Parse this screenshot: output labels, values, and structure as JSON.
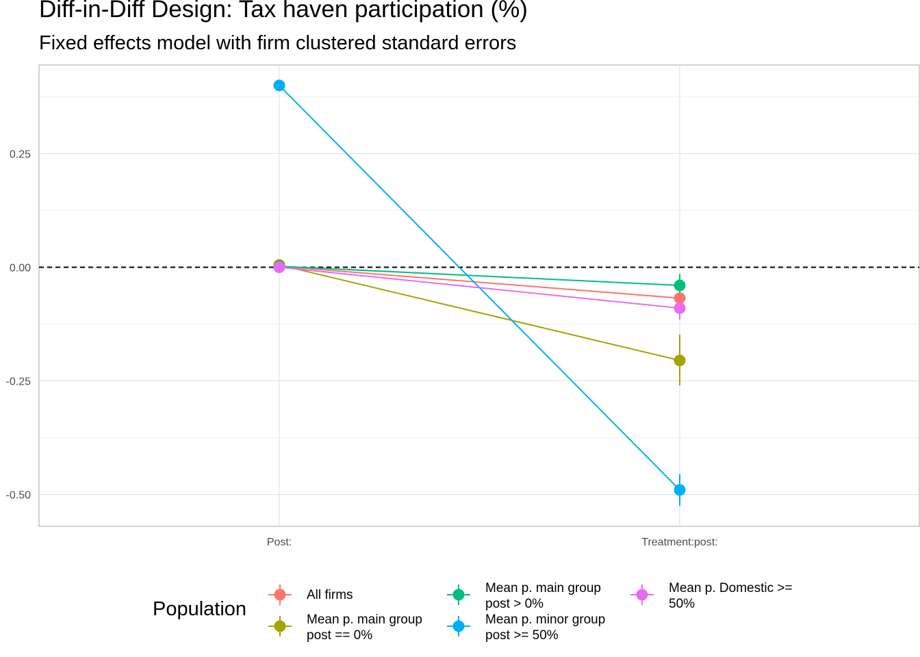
{
  "chart_data": {
    "type": "line",
    "title": "Diff-in-Diff Design: Tax haven participation (%)",
    "subtitle": "Fixed effects model with firm clustered standard errors",
    "xlabel": "",
    "ylabel": "",
    "categories": [
      "Post:",
      "Treatment:post:"
    ],
    "y_ticks": [
      0.25,
      0.0,
      -0.25,
      -0.5
    ],
    "y_tick_labels": [
      "0.25",
      "0.00",
      "-0.25",
      "-0.50"
    ],
    "ylim": [
      -0.57,
      0.445
    ],
    "grid": true,
    "reference_line": {
      "y": 0,
      "style": "dashed"
    },
    "legend": {
      "title": "Population",
      "position": "bottom"
    },
    "series": [
      {
        "name": "All firms",
        "color": "#F8766D",
        "values": [
          0.002,
          -0.068
        ],
        "ci_low": [
          0.0,
          -0.083
        ],
        "ci_high": [
          0.004,
          -0.053
        ]
      },
      {
        "name": "Mean p. main group post == 0%",
        "color": "#A3A500",
        "values": [
          0.005,
          -0.205
        ],
        "ci_low": [
          0.0,
          -0.26
        ],
        "ci_high": [
          0.01,
          -0.148
        ]
      },
      {
        "name": "Mean p. main group post > 0%",
        "color": "#00BF7D",
        "values": [
          0.002,
          -0.04
        ],
        "ci_low": [
          0.0,
          -0.065
        ],
        "ci_high": [
          0.004,
          -0.015
        ]
      },
      {
        "name": "Mean p. minor group post >= 50%",
        "color": "#00B0F6",
        "values": [
          0.4,
          -0.49
        ],
        "ci_low": [
          0.395,
          -0.525
        ],
        "ci_high": [
          0.405,
          -0.455
        ]
      },
      {
        "name": "Mean p. Domestic >= 50%",
        "color": "#E76BF3",
        "values": [
          0.0,
          -0.09
        ],
        "ci_low": [
          -0.002,
          -0.115
        ],
        "ci_high": [
          0.002,
          -0.065
        ]
      }
    ]
  },
  "legend_items": [
    {
      "line1": "All firms",
      "line2": ""
    },
    {
      "line1": "Mean p. main group",
      "line2": "post == 0%"
    },
    {
      "line1": "Mean p. main group",
      "line2": "post > 0%"
    },
    {
      "line1": "Mean p. minor group",
      "line2": "post >= 50%"
    },
    {
      "line1": "Mean p. Domestic >=",
      "line2": "50%"
    }
  ]
}
